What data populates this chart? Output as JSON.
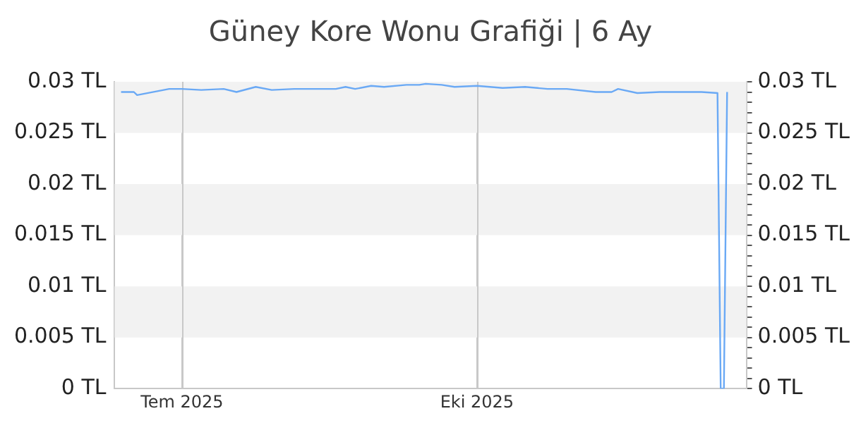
{
  "chart_data": {
    "type": "line",
    "title": "Güney Kore Wonu Grafiği | 6 Ay",
    "x": [
      "2025-06-12",
      "2025-06-16",
      "2025-06-17",
      "2025-06-27",
      "2025-07-01",
      "2025-07-07",
      "2025-07-14",
      "2025-07-18",
      "2025-07-24",
      "2025-07-29",
      "2025-08-05",
      "2025-08-18",
      "2025-08-21",
      "2025-08-24",
      "2025-08-29",
      "2025-09-02",
      "2025-09-09",
      "2025-09-13",
      "2025-09-15",
      "2025-09-20",
      "2025-09-24",
      "2025-10-01",
      "2025-10-09",
      "2025-10-16",
      "2025-10-23",
      "2025-10-29",
      "2025-11-07",
      "2025-11-12",
      "2025-11-14",
      "2025-11-20",
      "2025-11-27",
      "2025-12-10",
      "2025-12-15",
      "2025-12-16",
      "2025-12-17",
      "2025-12-18"
    ],
    "series": [
      {
        "color": "#6aa9f5",
        "values": [
          0.029,
          0.029,
          0.0287,
          0.0293,
          0.0293,
          0.0292,
          0.0293,
          0.029,
          0.0295,
          0.0292,
          0.0293,
          0.0293,
          0.0295,
          0.0293,
          0.0296,
          0.0295,
          0.0297,
          0.0297,
          0.0298,
          0.0297,
          0.0295,
          0.0296,
          0.0294,
          0.0295,
          0.0293,
          0.0293,
          0.029,
          0.029,
          0.0293,
          0.0289,
          0.029,
          0.029,
          0.0289,
          0,
          0,
          0.029
        ]
      }
    ],
    "xlim": [
      "2025-06-10",
      "2025-12-24"
    ],
    "xticks": [
      {
        "value": "2025-07-01",
        "label": "Tem 2025"
      },
      {
        "value": "2025-10-01",
        "label": "Eki 2025"
      }
    ],
    "ylim": [
      0,
      0.03
    ],
    "yticks": [
      {
        "value": 0,
        "label": "0 TL"
      },
      {
        "value": 0.005,
        "label": "0.005 TL"
      },
      {
        "value": 0.01,
        "label": "0.01 TL"
      },
      {
        "value": 0.015,
        "label": "0.015 TL"
      },
      {
        "value": 0.02,
        "label": "0.02 TL"
      },
      {
        "value": 0.025,
        "label": "0.025 TL"
      },
      {
        "value": 0.03,
        "label": "0.03 TL"
      }
    ],
    "y2lim": [
      0,
      0.03
    ],
    "y2ticks": [
      {
        "value": 0,
        "label": "0 TL"
      },
      {
        "value": 0.001,
        "label": null
      },
      {
        "value": 0.002,
        "label": null
      },
      {
        "value": 0.003,
        "label": null
      },
      {
        "value": 0.004,
        "label": null
      },
      {
        "value": 0.005,
        "label": "0.005 TL"
      },
      {
        "value": 0.006,
        "label": null
      },
      {
        "value": 0.007,
        "label": null
      },
      {
        "value": 0.008,
        "label": null
      },
      {
        "value": 0.009,
        "label": null
      },
      {
        "value": 0.01,
        "label": "0.01 TL"
      },
      {
        "value": 0.011,
        "label": null
      },
      {
        "value": 0.012,
        "label": null
      },
      {
        "value": 0.013,
        "label": null
      },
      {
        "value": 0.014,
        "label": null
      },
      {
        "value": 0.015,
        "label": "0.015 TL"
      },
      {
        "value": 0.016,
        "label": null
      },
      {
        "value": 0.017,
        "label": null
      },
      {
        "value": 0.018,
        "label": null
      },
      {
        "value": 0.019,
        "label": null
      },
      {
        "value": 0.02,
        "label": "0.02 TL"
      },
      {
        "value": 0.021,
        "label": null
      },
      {
        "value": 0.022,
        "label": null
      },
      {
        "value": 0.023,
        "label": null
      },
      {
        "value": 0.024,
        "label": null
      },
      {
        "value": 0.025,
        "label": "0.025 TL"
      },
      {
        "value": 0.026,
        "label": null
      },
      {
        "value": 0.027,
        "label": null
      },
      {
        "value": 0.028,
        "label": null
      },
      {
        "value": 0.029,
        "label": null
      },
      {
        "value": 0.03,
        "label": "0.03 TL"
      }
    ],
    "bands": [
      {
        "axis": "y",
        "from": 0.005,
        "to": 0.01,
        "color": "#f2f2f2"
      },
      {
        "axis": "y",
        "from": 0.015,
        "to": 0.02,
        "color": "#f2f2f2"
      },
      {
        "axis": "y",
        "from": 0.025,
        "to": 0.03,
        "color": "#f2f2f2"
      }
    ],
    "grid": "x",
    "legend": false,
    "marker": "none",
    "line_style": "solid"
  }
}
